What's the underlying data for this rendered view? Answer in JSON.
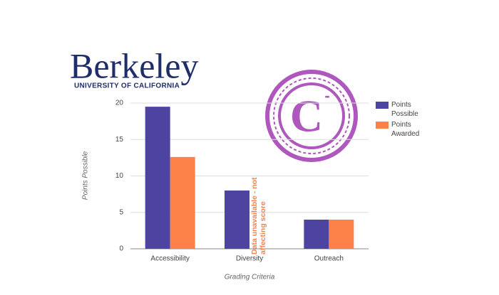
{
  "logo": {
    "name": "Berkeley",
    "subtitle": "UNIVERSITY OF CALIFORNIA"
  },
  "stamp": {
    "grade": "C",
    "modifier": "-"
  },
  "chart_data": {
    "type": "bar",
    "x_label": "Grading Criteria",
    "y_label": "Points Possible",
    "categories": [
      "Accessibility",
      "Diversity",
      "Outreach"
    ],
    "series": [
      {
        "name": "Points Possible",
        "color": "#4c44a0",
        "values": [
          19.5,
          8,
          4
        ]
      },
      {
        "name": "Points Awarded",
        "color": "#fb8149",
        "values": [
          12.6,
          null,
          4
        ]
      }
    ],
    "annotation": "Data unavailable - not affecting score",
    "ylim": [
      0,
      20
    ],
    "yticks": [
      0,
      5,
      10,
      15,
      20
    ],
    "grid": true,
    "legend": "right"
  }
}
